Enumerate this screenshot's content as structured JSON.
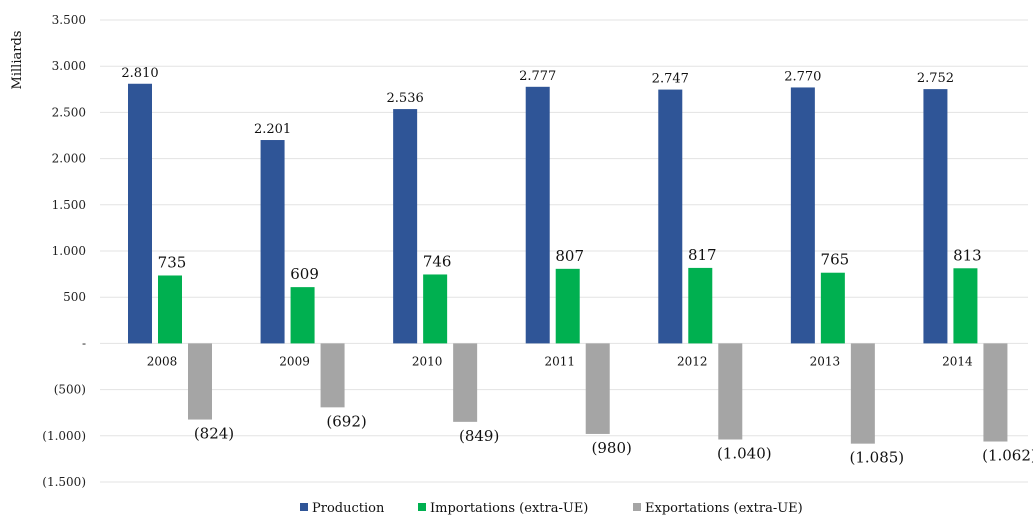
{
  "chart_data": {
    "type": "bar",
    "ylabel": "Milliards",
    "ylim": [
      -1500,
      3500
    ],
    "yticks": [
      {
        "value": 3500,
        "label": "3.500"
      },
      {
        "value": 3000,
        "label": "3.000"
      },
      {
        "value": 2500,
        "label": "2.500"
      },
      {
        "value": 2000,
        "label": "2.000"
      },
      {
        "value": 1500,
        "label": "1.500"
      },
      {
        "value": 1000,
        "label": "1.000"
      },
      {
        "value": 500,
        "label": "500"
      },
      {
        "value": 0,
        "label": "-"
      },
      {
        "value": -500,
        "label": "(500)"
      },
      {
        "value": -1000,
        "label": "(1.000)"
      },
      {
        "value": -1500,
        "label": "(1.500)"
      }
    ],
    "grid": true,
    "legend_position": "bottom",
    "categories": [
      "2008",
      "2009",
      "2010",
      "2011",
      "2012",
      "2013",
      "2014"
    ],
    "series": [
      {
        "name": "Production",
        "color": "#2f5597",
        "values": [
          2810,
          2201,
          2536,
          2777,
          2747,
          2770,
          2752
        ],
        "labels": [
          "2.810",
          "2.201",
          "2.536",
          "2.777",
          "2.747",
          "2.770",
          "2.752"
        ]
      },
      {
        "name": "Importations (extra-UE)",
        "color": "#00b050",
        "values": [
          735,
          609,
          746,
          807,
          817,
          765,
          813
        ],
        "labels": [
          "735",
          "609",
          "746",
          "807",
          "817",
          "765",
          "813"
        ]
      },
      {
        "name": "Exportations (extra-UE)",
        "color": "#a5a5a5",
        "values": [
          -824,
          -692,
          -849,
          -980,
          -1040,
          -1085,
          -1062
        ],
        "labels": [
          "(824)",
          "(692)",
          "(849)",
          "(980)",
          "(1.040)",
          "(1.085)",
          "(1.062)"
        ]
      }
    ]
  }
}
